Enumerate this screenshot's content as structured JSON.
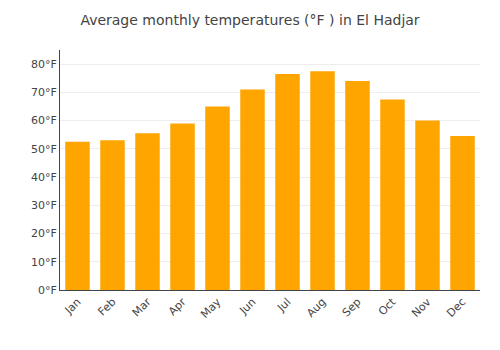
{
  "chart_data": {
    "type": "bar",
    "title": "Average monthly temperatures (°F ) in El Hadjar",
    "categories": [
      "Jan",
      "Feb",
      "Mar",
      "Apr",
      "May",
      "Jun",
      "Jul",
      "Aug",
      "Sep",
      "Oct",
      "Nov",
      "Dec"
    ],
    "values": [
      52.5,
      53.0,
      55.5,
      59.0,
      65.0,
      71.0,
      76.5,
      77.5,
      74.0,
      67.5,
      60.0,
      54.5
    ],
    "color": "#FFA500",
    "ylim": [
      0,
      85
    ],
    "yticks": [
      {
        "value": 0,
        "label": "0°F"
      },
      {
        "value": 10,
        "label": "10°F"
      },
      {
        "value": 20,
        "label": "20°F"
      },
      {
        "value": 30,
        "label": "30°F"
      },
      {
        "value": 40,
        "label": "40°F"
      },
      {
        "value": 50,
        "label": "50°F"
      },
      {
        "value": 60,
        "label": "60°F"
      },
      {
        "value": 70,
        "label": "70°F"
      },
      {
        "value": 80,
        "label": "80°F"
      }
    ],
    "grid": true
  }
}
